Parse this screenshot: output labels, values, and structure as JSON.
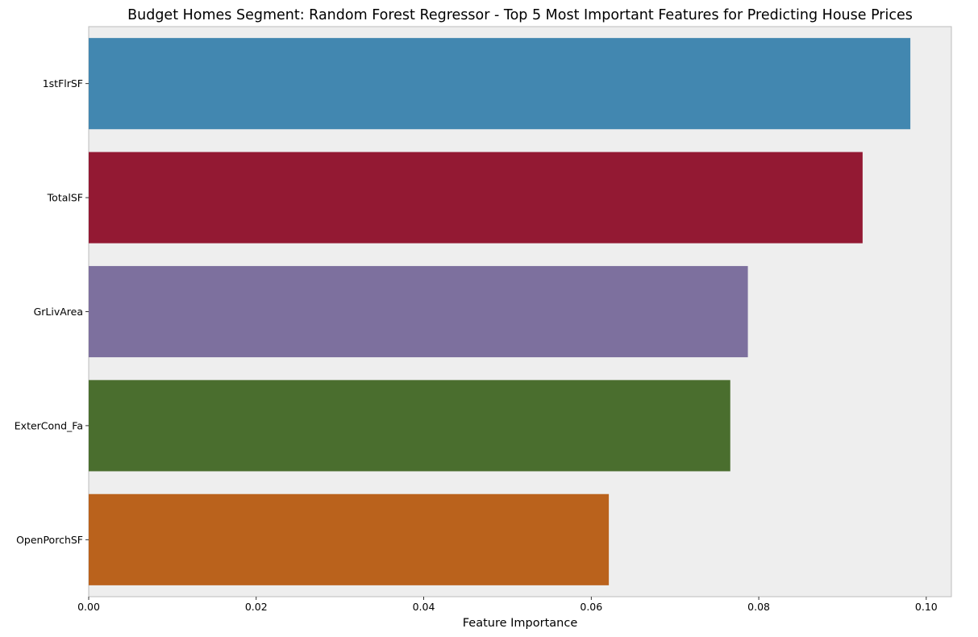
{
  "chart_data": {
    "type": "bar",
    "orientation": "horizontal",
    "title": "Budget Homes Segment: Random Forest Regressor - Top 5 Most Important Features for Predicting House Prices",
    "xlabel": "Feature Importance",
    "ylabel": "",
    "categories": [
      "1stFlrSF",
      "TotalSF",
      "GrLivArea",
      "ExterCond_Fa",
      "OpenPorchSF"
    ],
    "values": [
      0.0981,
      0.0924,
      0.0787,
      0.0766,
      0.0621
    ],
    "colors": [
      "#4287b0",
      "#931933",
      "#7d709e",
      "#4a6e2e",
      "#ba621c"
    ],
    "xlim": [
      0,
      0.103
    ],
    "xticks": [
      "0.00",
      "0.02",
      "0.04",
      "0.06",
      "0.08",
      "0.10"
    ],
    "xtick_values": [
      0,
      0.02,
      0.04,
      0.06,
      0.08,
      0.1
    ],
    "grid": false,
    "plot_background": "#eeeeee",
    "legend": "none"
  }
}
